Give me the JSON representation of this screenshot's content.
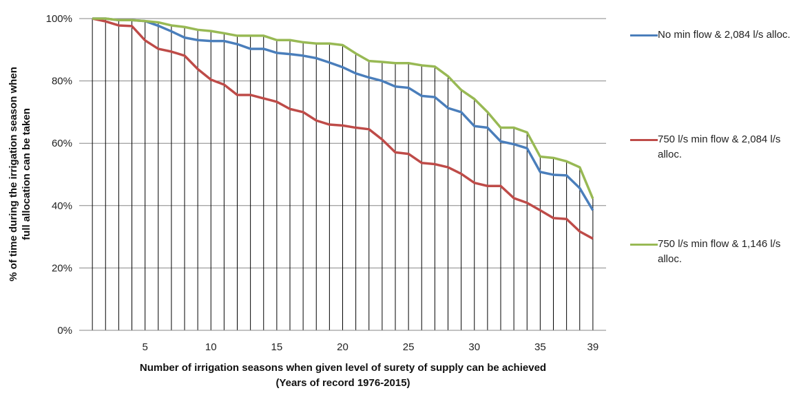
{
  "chart_data": {
    "type": "line",
    "ylabel": [
      "% of time during the irrigation season when",
      "full allocation  can be taken"
    ],
    "xlabel": [
      "Number of irrigation  seasons when given level of surety of supply can be achieved",
      "(Years of record 1976-2015)"
    ],
    "x": [
      1,
      2,
      3,
      4,
      5,
      6,
      7,
      8,
      9,
      10,
      11,
      12,
      13,
      14,
      15,
      16,
      17,
      18,
      19,
      20,
      21,
      22,
      23,
      24,
      25,
      26,
      27,
      28,
      29,
      30,
      31,
      32,
      33,
      34,
      35,
      36,
      37,
      38,
      39
    ],
    "xlim": [
      0,
      40
    ],
    "xticks": [
      5,
      10,
      15,
      20,
      25,
      30,
      35,
      39
    ],
    "ylim": [
      0,
      100
    ],
    "yticks": [
      {
        "value": 0,
        "label": "0%"
      },
      {
        "value": 20,
        "label": "20%"
      },
      {
        "value": 40,
        "label": "40%"
      },
      {
        "value": 60,
        "label": "60%"
      },
      {
        "value": 80,
        "label": "80%"
      },
      {
        "value": 100,
        "label": "100%"
      }
    ],
    "drop_lines": true,
    "series": [
      {
        "name": "No min flow  & 2,084 l/s alloc.",
        "color": "#4a7ebb",
        "values": [
          100,
          100,
          99.5,
          99.5,
          99.2,
          97.7,
          95.9,
          93.9,
          93.1,
          92.8,
          92.8,
          91.8,
          90.3,
          90.3,
          89,
          88.6,
          88.1,
          87.3,
          85.9,
          84.4,
          82.4,
          81.1,
          80,
          78.2,
          77.8,
          75.2,
          74.8,
          71.3,
          70,
          65.5,
          65,
          60.6,
          59.7,
          58.4,
          50.8,
          49.9,
          49.7,
          45.6,
          38.5
        ]
      },
      {
        "name": "750 l/s min flow  & 2,084 l/s alloc.",
        "color": "#be4b48",
        "values": [
          100,
          99.1,
          97.8,
          97.6,
          93,
          90.3,
          89.4,
          88.1,
          83.8,
          80.4,
          78.8,
          75.5,
          75.5,
          74.4,
          73.3,
          71,
          70,
          67.3,
          66,
          65.7,
          65,
          64.5,
          61.2,
          57.1,
          56.6,
          53.7,
          53.3,
          52.3,
          50.2,
          47.3,
          46.3,
          46.3,
          42.4,
          40.9,
          38.5,
          36,
          35.7,
          31.7,
          29.4
        ]
      },
      {
        "name": "750 l/s min flow  & 1,146 l/s alloc.",
        "color": "#98b954",
        "values": [
          100,
          100,
          99.5,
          99.5,
          99.2,
          98.8,
          97.8,
          97.3,
          96.4,
          96,
          95.3,
          94.5,
          94.5,
          94.5,
          93.1,
          93.1,
          92.4,
          92,
          92,
          91.5,
          88.8,
          86.4,
          86.1,
          85.7,
          85.7,
          85,
          84.6,
          81.5,
          77.1,
          74.2,
          70,
          65,
          65,
          63.5,
          55.7,
          55.3,
          54.2,
          52.3,
          42.2
        ]
      }
    ]
  }
}
